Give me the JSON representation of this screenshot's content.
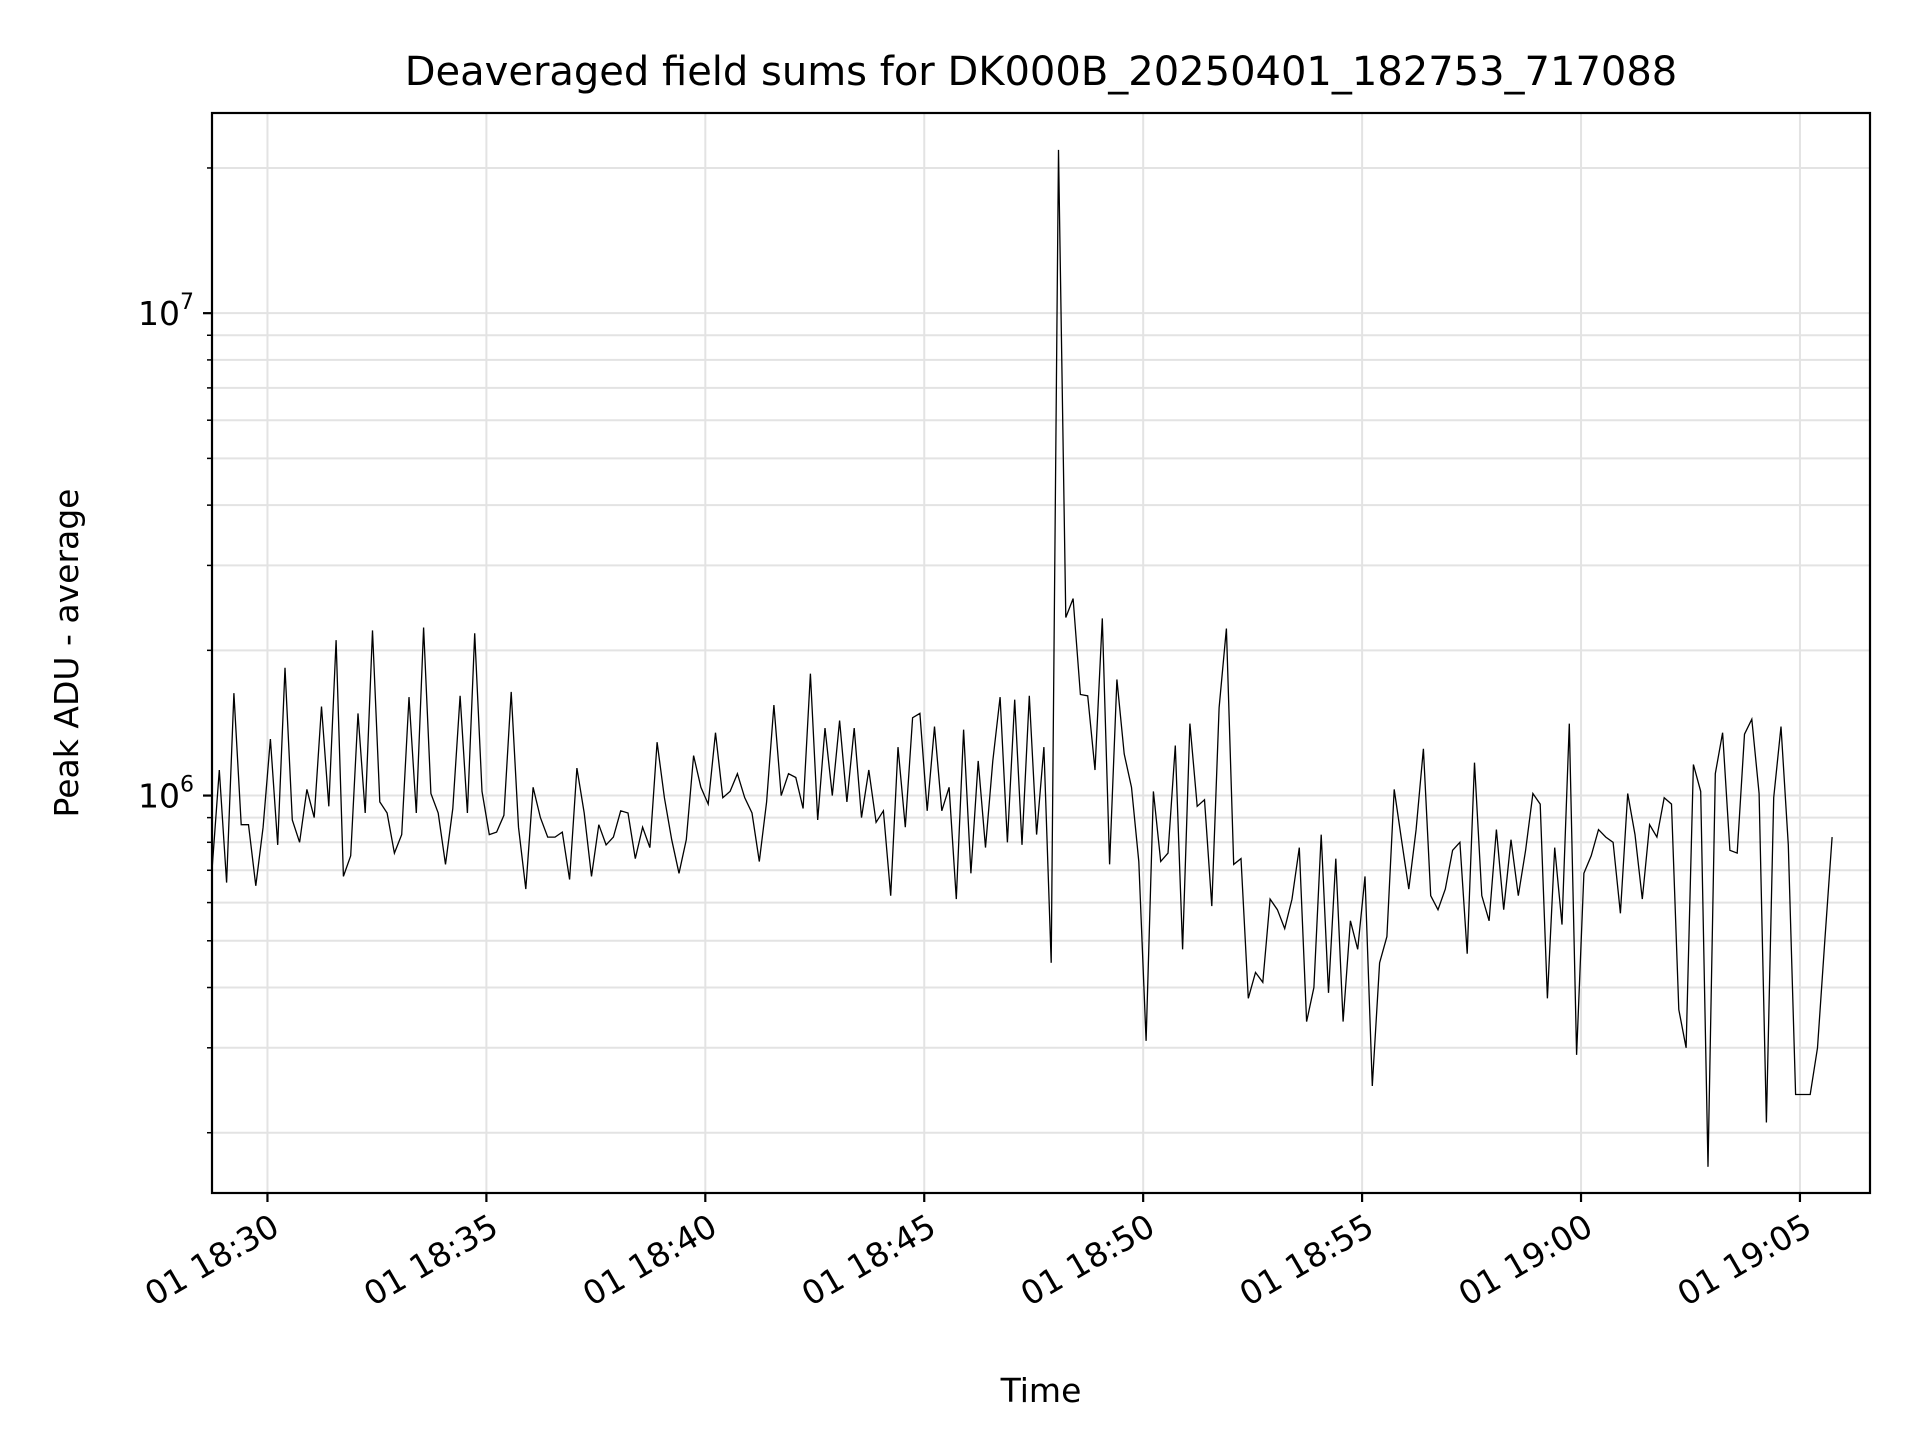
{
  "chart_data": {
    "type": "line",
    "title": "Deaveraged field sums for DK000B_20250401_182753_717088",
    "xlabel": "Time",
    "ylabel": "Peak ADU - average",
    "yscale": "log",
    "grid": true,
    "grid_which": "both",
    "x_format": "%d %H:%M",
    "x_tick_rotation_deg": 30,
    "xlim": [
      "2025-04-01T18:28:44",
      "2025-04-01T19:06:36"
    ],
    "ylim": [
      150000,
      26000000
    ],
    "x_ticks": [
      {
        "t": "2025-04-01T18:30:00",
        "label": "01 18:30"
      },
      {
        "t": "2025-04-01T18:35:00",
        "label": "01 18:35"
      },
      {
        "t": "2025-04-01T18:40:00",
        "label": "01 18:40"
      },
      {
        "t": "2025-04-01T18:45:00",
        "label": "01 18:45"
      },
      {
        "t": "2025-04-01T18:50:00",
        "label": "01 18:50"
      },
      {
        "t": "2025-04-01T18:55:00",
        "label": "01 18:55"
      },
      {
        "t": "2025-04-01T19:00:00",
        "label": "01 19:00"
      },
      {
        "t": "2025-04-01T19:05:00",
        "label": "01 19:05"
      }
    ],
    "y_ticks": [
      {
        "value": 1000000,
        "base": "10",
        "exp": "6"
      },
      {
        "value": 10000000,
        "base": "10",
        "exp": "7"
      }
    ],
    "series": [
      {
        "line_color": "#000000",
        "x_start": "2025-04-01T18:28:44",
        "x_step_seconds": 10,
        "values": [
          700000,
          1130000,
          660000,
          1630000,
          870000,
          870000,
          650000,
          860000,
          1310000,
          790000,
          1840000,
          890000,
          800000,
          1030000,
          900000,
          1530000,
          950000,
          2100000,
          680000,
          750000,
          1480000,
          920000,
          2200000,
          970000,
          920000,
          760000,
          830000,
          1600000,
          920000,
          2230000,
          1010000,
          920000,
          720000,
          940000,
          1610000,
          920000,
          2170000,
          1020000,
          830000,
          840000,
          910000,
          1640000,
          860000,
          640000,
          1040000,
          900000,
          820000,
          820000,
          840000,
          670000,
          1140000,
          920000,
          680000,
          870000,
          790000,
          820000,
          930000,
          920000,
          740000,
          860000,
          780000,
          1290000,
          990000,
          810000,
          690000,
          810000,
          1210000,
          1040000,
          960000,
          1350000,
          990000,
          1020000,
          1110000,
          990000,
          920000,
          730000,
          970000,
          1540000,
          1000000,
          1110000,
          1090000,
          940000,
          1790000,
          890000,
          1380000,
          1000000,
          1430000,
          970000,
          1380000,
          900000,
          1130000,
          880000,
          930000,
          620000,
          1260000,
          860000,
          1450000,
          1480000,
          930000,
          1390000,
          930000,
          1040000,
          610000,
          1370000,
          690000,
          1180000,
          780000,
          1180000,
          1600000,
          800000,
          1580000,
          790000,
          1610000,
          830000,
          1260000,
          450000,
          21800000,
          2340000,
          2560000,
          1620000,
          1610000,
          1130000,
          2330000,
          720000,
          1740000,
          1220000,
          1040000,
          730000,
          310000,
          1020000,
          730000,
          760000,
          1270000,
          480000,
          1410000,
          950000,
          980000,
          590000,
          1520000,
          2220000,
          720000,
          740000,
          380000,
          430000,
          410000,
          610000,
          580000,
          530000,
          610000,
          780000,
          340000,
          400000,
          830000,
          390000,
          740000,
          340000,
          550000,
          480000,
          680000,
          250000,
          450000,
          510000,
          1030000,
          810000,
          640000,
          850000,
          1250000,
          620000,
          580000,
          640000,
          770000,
          800000,
          470000,
          1170000,
          620000,
          550000,
          850000,
          580000,
          810000,
          620000,
          770000,
          1010000,
          960000,
          380000,
          780000,
          540000,
          1410000,
          290000,
          690000,
          750000,
          850000,
          820000,
          800000,
          570000,
          1010000,
          830000,
          610000,
          870000,
          820000,
          990000,
          960000,
          360000,
          300000,
          1160000,
          1020000,
          170000,
          1110000,
          1350000,
          770000,
          760000,
          1340000,
          1440000,
          1010000,
          210000,
          990000,
          1390000,
          790000,
          240000,
          240000,
          240000,
          300000,
          500000,
          820000
        ]
      }
    ]
  }
}
